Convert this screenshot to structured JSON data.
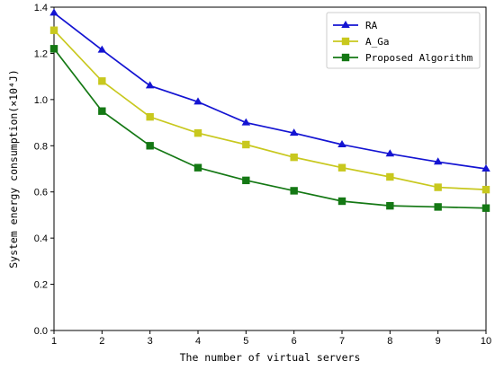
{
  "chart_data": {
    "type": "line",
    "x": [
      1,
      2,
      3,
      4,
      5,
      6,
      7,
      8,
      9,
      10
    ],
    "series": [
      {
        "name": "RA",
        "color": "#1414d2",
        "marker": "triangle",
        "values": [
          1.375,
          1.215,
          1.06,
          0.99,
          0.9,
          0.855,
          0.805,
          0.765,
          0.73,
          0.7
        ]
      },
      {
        "name": "A_Ga",
        "color": "#c8c81e",
        "marker": "square",
        "values": [
          1.3,
          1.08,
          0.925,
          0.855,
          0.805,
          0.75,
          0.705,
          0.665,
          0.62,
          0.61
        ]
      },
      {
        "name": "Proposed Algorithm",
        "color": "#147814",
        "marker": "square",
        "values": [
          1.22,
          0.95,
          0.8,
          0.705,
          0.65,
          0.605,
          0.56,
          0.54,
          0.535,
          0.53
        ]
      }
    ],
    "xlabel": "The number of virtual servers",
    "ylabel": "System energy consumption(×10⁴J)",
    "xlim": [
      1,
      10
    ],
    "ylim": [
      0,
      1.4
    ],
    "xticks": [
      "1",
      "2",
      "3",
      "4",
      "5",
      "6",
      "7",
      "8",
      "9",
      "10"
    ],
    "yticks": [
      "0.0",
      "0.2",
      "0.4",
      "0.6",
      "0.8",
      "1.0",
      "1.2",
      "1.4"
    ],
    "legend_position": "top-right",
    "grid": false
  }
}
